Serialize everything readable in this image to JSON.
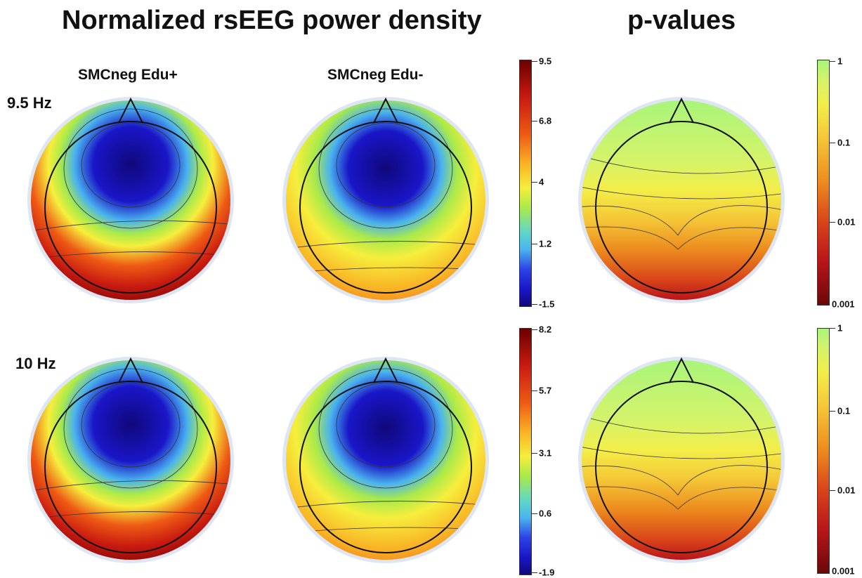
{
  "titles": {
    "left": "Normalized rsEEG power density",
    "right": "p-values"
  },
  "columns": [
    "SMCneg Edu+",
    "SMCneg Edu-"
  ],
  "rows": [
    "9.5 Hz",
    "10 Hz"
  ],
  "power_scales": [
    {
      "labels": [
        "9.5",
        "6.8",
        "4",
        "1.2",
        "-1.5"
      ]
    },
    {
      "labels": [
        "8.2",
        "5.7",
        "3.1",
        "0.6",
        "-1.9"
      ]
    }
  ],
  "pvalue_scale": {
    "labels": [
      "1",
      "0.1",
      "0.01",
      "0.001"
    ]
  },
  "colors": {
    "power_min": "#10087a",
    "power_mid": "#f6ee3c",
    "power_max": "#6b0000",
    "p_high": "#a8f57a",
    "p_low": "#6a0808",
    "head_rim": "#dfe6f3"
  }
}
